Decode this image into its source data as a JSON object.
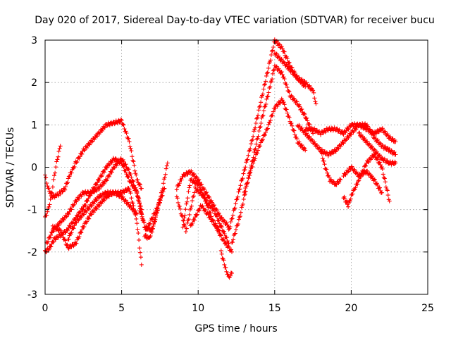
{
  "chart_data": {
    "type": "scatter",
    "title": "Day 020 of 2017, Sidereal Day-to-day VTEC variation (SDTVAR) for receiver bucu",
    "xlabel": "GPS time / hours",
    "ylabel": "SDTVAR / TECUs",
    "xlim": [
      0,
      25
    ],
    "ylim": [
      -3,
      3
    ],
    "xticks": [
      "0",
      "5",
      "10",
      "15",
      "20",
      "25"
    ],
    "yticks": [
      "-3",
      "-2",
      "-1",
      "0",
      "1",
      "2",
      "3"
    ],
    "grid": true,
    "marker": "plus",
    "color": "#ff0000",
    "series": [
      {
        "x": [
          0.0,
          0.2,
          0.5,
          0.8,
          1.0,
          1.3,
          1.6,
          2.0,
          2.5,
          3.0,
          3.5,
          4.0,
          4.5,
          5.0,
          5.5,
          6.0,
          6.3
        ],
        "y": [
          -0.2,
          -0.5,
          -0.7,
          -0.65,
          -0.6,
          -0.5,
          -0.2,
          0.1,
          0.4,
          0.6,
          0.8,
          1.0,
          1.05,
          1.1,
          0.6,
          -0.3,
          -0.5
        ]
      },
      {
        "x": [
          0.0,
          0.2,
          0.4,
          0.6,
          0.8,
          1.0
        ],
        "y": [
          -1.2,
          -1.0,
          -0.7,
          -0.2,
          0.2,
          0.5
        ]
      },
      {
        "x": [
          0.0,
          0.3,
          0.6,
          1.0,
          1.4,
          1.8,
          2.2,
          2.6,
          3.0,
          3.5,
          4.0,
          4.5,
          5.0,
          5.5,
          6.0,
          6.3
        ],
        "y": [
          -2.0,
          -1.9,
          -1.7,
          -1.6,
          -1.5,
          -1.3,
          -1.1,
          -0.9,
          -0.6,
          -0.3,
          0.0,
          0.2,
          0.1,
          -0.3,
          -0.6,
          -1.1
        ]
      },
      {
        "x": [
          0.1,
          0.5,
          1.0,
          1.5,
          2.0,
          2.5,
          3.0,
          3.5,
          4.0,
          4.5,
          5.0,
          5.5,
          6.0,
          6.3
        ],
        "y": [
          -1.8,
          -1.5,
          -1.3,
          -1.1,
          -0.8,
          -0.6,
          -0.6,
          -0.5,
          -0.3,
          0.0,
          0.2,
          -0.1,
          -0.6,
          -1.0
        ]
      },
      {
        "x": [
          0.5,
          1.0,
          1.5,
          2.0,
          2.5,
          3.0,
          3.5,
          4.0,
          4.5,
          5.0,
          5.5,
          6.0,
          6.3
        ],
        "y": [
          -1.4,
          -1.5,
          -1.9,
          -1.8,
          -1.4,
          -1.1,
          -0.9,
          -0.7,
          -0.6,
          -0.6,
          -0.5,
          -1.3,
          -2.3
        ]
      },
      {
        "x": [
          1.5,
          2.0,
          2.5,
          3.0,
          3.5,
          4.0,
          4.5,
          5.0,
          5.5,
          6.0
        ],
        "y": [
          -1.7,
          -1.3,
          -1.1,
          -0.9,
          -0.7,
          -0.6,
          -0.6,
          -0.7,
          -0.9,
          -1.1
        ]
      },
      {
        "x": [
          6.0,
          6.5,
          7.0,
          7.5,
          8.0
        ],
        "y": [
          -0.6,
          -1.4,
          -1.5,
          -0.8,
          0.1
        ]
      },
      {
        "x": [
          6.2,
          6.6,
          7.0,
          7.4,
          7.8
        ],
        "y": [
          -1.0,
          -1.5,
          -1.2,
          -0.9,
          -0.5
        ]
      },
      {
        "x": [
          6.5,
          6.8,
          7.2,
          7.6
        ],
        "y": [
          -1.6,
          -1.7,
          -1.2,
          -0.6
        ]
      },
      {
        "x": [
          8.6,
          9.0,
          9.5,
          10.0,
          10.5,
          11.0,
          11.5,
          12.0
        ],
        "y": [
          -0.5,
          -0.2,
          -0.1,
          -0.3,
          -0.6,
          -0.9,
          -1.2,
          -1.4
        ]
      },
      {
        "x": [
          9.0,
          9.5,
          10.0,
          10.5,
          11.0,
          11.5,
          12.0
        ],
        "y": [
          -1.4,
          -0.3,
          -0.4,
          -0.8,
          -1.0,
          -1.4,
          -1.8
        ]
      },
      {
        "x": [
          8.6,
          9.2,
          9.8,
          10.4,
          11.0,
          11.6,
          12.2
        ],
        "y": [
          -0.7,
          -1.5,
          -0.5,
          -0.7,
          -1.3,
          -1.7,
          -2.0
        ]
      },
      {
        "x": [
          9.5,
          10.2,
          10.8,
          11.4
        ],
        "y": [
          -1.4,
          -0.9,
          -1.2,
          -1.5
        ]
      },
      {
        "x": [
          11.5,
          11.8,
          12.0,
          12.2
        ],
        "y": [
          -2.0,
          -2.4,
          -2.6,
          -2.5
        ]
      },
      {
        "x": [
          12.0,
          12.5,
          13.0,
          13.5,
          14.0,
          14.5,
          15.0,
          15.5,
          16.0,
          16.5,
          17.0
        ],
        "y": [
          -1.5,
          -0.8,
          -0.1,
          0.6,
          1.4,
          2.2,
          3.0,
          2.8,
          2.4,
          2.1,
          1.9
        ]
      },
      {
        "x": [
          12.2,
          12.7,
          13.2,
          13.7,
          14.2,
          14.7,
          15.0,
          15.5,
          16.0,
          16.5,
          17.0,
          17.5
        ],
        "y": [
          -1.8,
          -1.2,
          -0.4,
          0.4,
          1.2,
          1.9,
          2.4,
          2.2,
          1.7,
          1.5,
          1.2,
          0.8
        ]
      },
      {
        "x": [
          13.0,
          13.5,
          14.0,
          14.5,
          15.0,
          15.5,
          16.0,
          16.5,
          17.0
        ],
        "y": [
          -0.6,
          0.0,
          0.5,
          0.9,
          1.4,
          1.6,
          1.1,
          0.6,
          0.4
        ]
      },
      {
        "x": [
          15.0,
          15.5,
          16.0,
          16.5,
          17.0,
          17.5,
          17.7
        ],
        "y": [
          2.7,
          2.5,
          2.3,
          2.1,
          2.0,
          1.8,
          1.5
        ]
      },
      {
        "x": [
          16.5,
          17.0,
          17.5,
          18.0,
          18.5,
          19.0,
          19.5,
          20.0,
          20.5,
          21.0,
          21.5,
          22.0,
          22.5,
          22.9
        ],
        "y": [
          1.0,
          0.8,
          0.6,
          0.4,
          0.3,
          0.4,
          0.6,
          0.8,
          1.0,
          1.0,
          0.7,
          0.5,
          0.4,
          0.3
        ]
      },
      {
        "x": [
          17.0,
          17.5,
          18.0,
          18.5,
          19.0,
          19.5,
          20.0,
          20.5,
          21.0,
          21.5,
          22.0,
          22.5,
          22.9
        ],
        "y": [
          0.9,
          0.9,
          0.8,
          0.9,
          0.9,
          0.8,
          1.0,
          1.0,
          0.9,
          0.8,
          0.9,
          0.7,
          0.6
        ]
      },
      {
        "x": [
          18.0,
          18.3,
          18.6,
          19.0,
          19.3
        ],
        "y": [
          0.4,
          0.0,
          -0.3,
          -0.4,
          -0.3
        ]
      },
      {
        "x": [
          19.5,
          19.8,
          20.1,
          20.5,
          21.0,
          21.5,
          22.0,
          22.5
        ],
        "y": [
          -0.7,
          -0.9,
          -0.6,
          -0.3,
          0.1,
          0.3,
          0.0,
          -0.8
        ]
      },
      {
        "x": [
          19.5,
          20.0,
          20.5,
          21.0,
          21.5,
          22.0
        ],
        "y": [
          -0.2,
          0.0,
          -0.2,
          -0.1,
          -0.3,
          -0.6
        ]
      },
      {
        "x": [
          20.5,
          21.0,
          21.5,
          22.0,
          22.5,
          22.9
        ],
        "y": [
          0.8,
          0.6,
          0.4,
          0.2,
          0.1,
          0.1
        ]
      }
    ]
  }
}
